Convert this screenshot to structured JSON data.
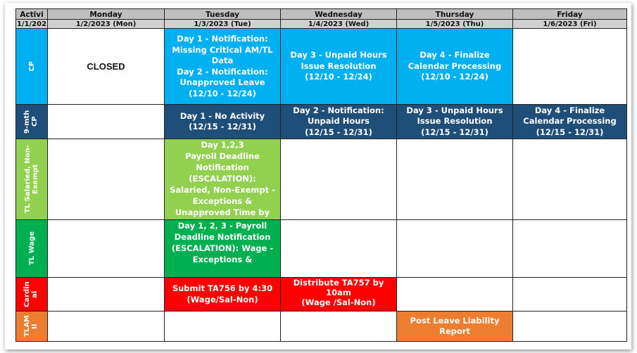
{
  "headers": {
    "activity": "Activi",
    "days": [
      "Monday",
      "Tuesday",
      "Wednesday",
      "Thursday",
      "Friday"
    ]
  },
  "dates": {
    "activity": "1/1/202",
    "days": [
      "1/2/2023 (Mon)",
      "1/3/2023 (Tue)",
      "1/4/2023 (Wed)",
      "1/5/2023 (Thu)",
      "1/6/2023 (Fri)"
    ]
  },
  "rows": [
    {
      "label": "CP",
      "cells": [
        "CLOSED",
        "Day 1 - Notification: Missing Critical AM/TL Data\nDay 2 - Notification: Unapproved Leave\n(12/10 - 12/24)",
        "Day 3 - Unpaid Hours Issue Resolution\n(12/10 - 12/24)",
        "Day 4 - Finalize Calendar Processing\n(12/10 - 12/24)",
        ""
      ]
    },
    {
      "label": "9-mth CP",
      "cells": [
        "",
        "Day 1 - No Activity\n(12/15 - 12/31)",
        "Day 2 - Notification: Unpaid Hours\n(12/15 - 12/31)",
        "Day 3 - Unpaid Hours Issue Resolution\n(12/15 - 12/31)",
        "Day 4 - Finalize Calendar Processing\n(12/15 - 12/31)"
      ]
    },
    {
      "label": "TL Salaried, Non-Exempt",
      "cells": [
        "",
        "Day 1,2,3\nPayroll Deadline Notification (ESCALATION): Salaried, Non-Exempt - Exceptions & Unapproved Time by",
        "",
        "",
        ""
      ]
    },
    {
      "label": "TL Wage",
      "cells": [
        "",
        "Day 1, 2, 3 - Payroll Deadline Notification (ESCALATION): Wage - Exceptions &",
        "",
        "",
        ""
      ]
    },
    {
      "label": "Cardinal",
      "cells": [
        "",
        "Submit TA756 by 4:30\n(Wage/Sal-Non)",
        "Distribute TA757 by 10am\n(Wage /Sal-Non)",
        "",
        ""
      ]
    },
    {
      "label": "TLAMII",
      "cells": [
        "",
        "",
        "",
        "Post Leave Liability Report",
        ""
      ]
    }
  ],
  "colors": {
    "cp": "#00b0f0",
    "nine_month_cp": "#1f4e79",
    "tl_salaried": "#92d050",
    "tl_wage": "#00b050",
    "cardinal": "#ff0000",
    "tlamii": "#ed7d31"
  }
}
